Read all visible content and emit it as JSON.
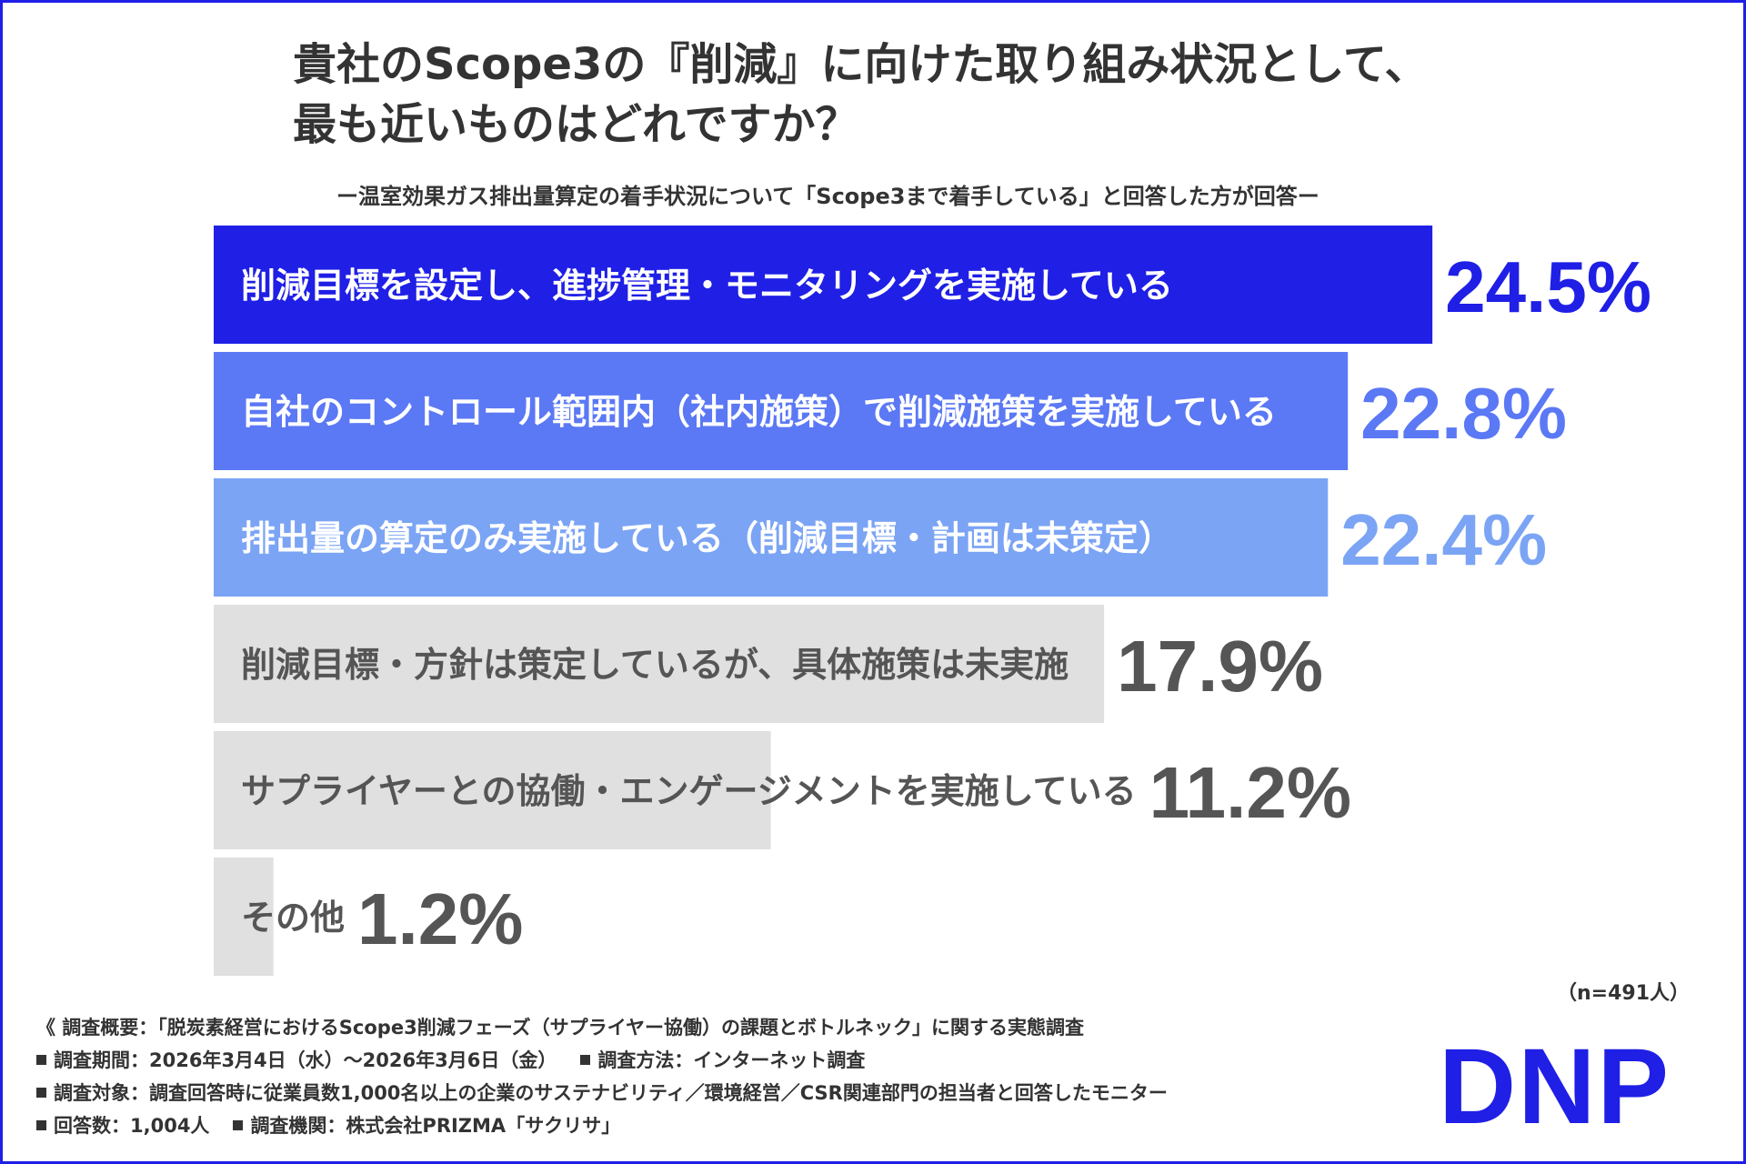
{
  "title_line1": "貴社のScope3の『削減』に向けた取り組み状況として、",
  "title_line2": "最も近いものはどれですか？",
  "subtitle": "ー温室効果ガス排出量算定の着手状況について「Scope3まで着手している」と回答した方が回答ー",
  "sample_note": "（n=491人）",
  "footnotes": {
    "summary": "《 調査概要：「脱炭素経営におけるScope3削減フェーズ（サプライヤー協働）の課題とボトルネック」に関する実態調査",
    "period": "調査期間：2026年3月4日（水）～2026年3月6日（金）",
    "method": "調査方法：インターネット調査",
    "target": "調査対象：調査回答時に従業員数1,000名以上の企業のサステナビリティ／環境経営／CSR関連部門の担当者と回答したモニター",
    "respondents": "回答数：1,004人",
    "organization": "調査機関：株式会社PRIZMA「サクリサ」"
  },
  "logo_text": "DNP",
  "colors": {
    "frame": "#1f1fe6",
    "text": "#333333",
    "logo": "#1f1fe6"
  },
  "chart_data": {
    "type": "bar",
    "orientation": "horizontal",
    "categories": [
      "削減目標を設定し、進捗管理・モニタリングを実施している",
      "自社のコントロール範囲内（社内施策）で削減施策を実施している",
      "排出量の算定のみ実施している（削減目標・計画は未策定）",
      "削減目標・方針は策定しているが、具体施策は未実施",
      "サプライヤーとの協働・エンゲージメントを実施している",
      "その他"
    ],
    "values": [
      24.5,
      22.8,
      22.4,
      17.9,
      11.2,
      1.2
    ],
    "value_labels": [
      "24.5%",
      "22.8%",
      "22.4%",
      "17.9%",
      "11.2%",
      "1.2%"
    ],
    "unit": "%",
    "bar_colors": [
      "#1f1fe6",
      "#5b78f5",
      "#7ba4f5",
      "#e0e0e0",
      "#e0e0e0",
      "#e0e0e0"
    ],
    "label_colors": [
      "#ffffff",
      "#ffffff",
      "#ffffff",
      "#555555",
      "#555555",
      "#555555"
    ],
    "value_colors": [
      "#1f1fe6",
      "#5b78f5",
      "#7ba4f5",
      "#555555",
      "#555555",
      "#555555"
    ],
    "legend": "none",
    "grid": false
  }
}
